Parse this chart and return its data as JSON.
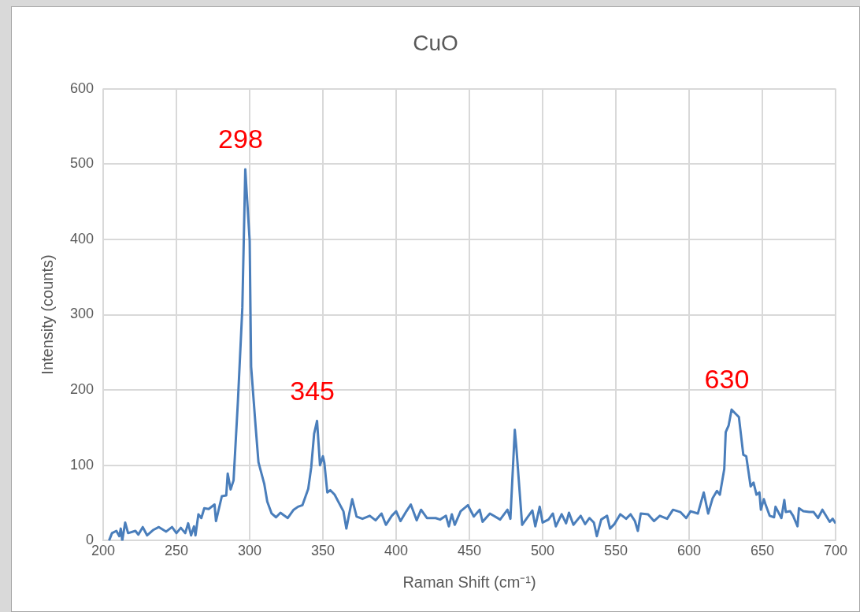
{
  "chart_data": {
    "type": "line",
    "title": "CuO",
    "xlabel": "Raman Shift (cm⁻¹)",
    "ylabel": "Intensity (counts)",
    "xlim": [
      200,
      700
    ],
    "xticks": [
      200,
      250,
      300,
      350,
      400,
      450,
      500,
      550,
      600,
      650,
      700
    ],
    "ylim": [
      0,
      600
    ],
    "yticks": [
      0,
      100,
      200,
      300,
      400,
      500,
      600
    ],
    "grid": true,
    "legend": false,
    "marker": "none",
    "line_style": "solid",
    "annotations": [
      {
        "text": "298",
        "x": 297,
        "y": 493
      },
      {
        "text": "345",
        "x": 346,
        "y": 159
      },
      {
        "text": "630",
        "x": 629,
        "y": 174
      }
    ],
    "series": [
      {
        "color": "#4a7ebb",
        "x": [
          204,
          206,
          209,
          211,
          212,
          213,
          215,
          217,
          222,
          224,
          227,
          230,
          234,
          238,
          243,
          247,
          250,
          253,
          256,
          258,
          260,
          262,
          263,
          265,
          267,
          269,
          272,
          276,
          277,
          281,
          284,
          285,
          287,
          289,
          292,
          295,
          297,
          300,
          301,
          304,
          306,
          310,
          312,
          315,
          318,
          321,
          326,
          330,
          333,
          336,
          340,
          342,
          344,
          346,
          348,
          350,
          351,
          353,
          355,
          358,
          361,
          364,
          366,
          368,
          370,
          373,
          377,
          382,
          386,
          390,
          393,
          397,
          400,
          403,
          407,
          410,
          414,
          417,
          421,
          427,
          430,
          434,
          436,
          438,
          440,
          444,
          449,
          453,
          457,
          459,
          464,
          471,
          476,
          478,
          481,
          482,
          486,
          490,
          493,
          495,
          498,
          500,
          504,
          507,
          509,
          513,
          516,
          518,
          521,
          526,
          529,
          532,
          535,
          537,
          540,
          544,
          546,
          549,
          553,
          557,
          560,
          563,
          565,
          567,
          572,
          576,
          580,
          585,
          589,
          594,
          598,
          601,
          606,
          610,
          613,
          616,
          619,
          621,
          624,
          625,
          627,
          629,
          632,
          634,
          637,
          639,
          642,
          644,
          646,
          648,
          649,
          651,
          652,
          655,
          658,
          659,
          663,
          665,
          666,
          669,
          671,
          674,
          675,
          678,
          682,
          685,
          688,
          691,
          696,
          698,
          700
        ],
        "values": [
          0,
          10,
          13,
          6,
          16,
          0,
          24,
          10,
          13,
          8,
          18,
          7,
          14,
          18,
          12,
          18,
          10,
          17,
          10,
          23,
          7,
          19,
          7,
          35,
          30,
          43,
          42,
          48,
          26,
          59,
          60,
          89,
          68,
          80,
          186,
          309,
          493,
          398,
          231,
          153,
          104,
          75,
          52,
          36,
          31,
          37,
          30,
          41,
          45,
          47,
          69,
          97,
          142,
          159,
          100,
          112,
          103,
          64,
          67,
          61,
          50,
          39,
          16,
          36,
          55,
          32,
          29,
          33,
          27,
          36,
          21,
          33,
          39,
          26,
          39,
          48,
          27,
          41,
          30,
          30,
          28,
          33,
          19,
          35,
          21,
          39,
          47,
          32,
          41,
          25,
          36,
          28,
          41,
          29,
          147,
          125,
          21,
          32,
          40,
          19,
          45,
          24,
          28,
          36,
          19,
          35,
          23,
          37,
          21,
          33,
          22,
          30,
          24,
          6,
          28,
          33,
          16,
          22,
          35,
          29,
          35,
          26,
          13,
          36,
          35,
          26,
          33,
          29,
          41,
          38,
          30,
          39,
          36,
          64,
          36,
          56,
          66,
          61,
          95,
          144,
          153,
          174,
          168,
          164,
          114,
          112,
          72,
          77,
          61,
          64,
          41,
          55,
          49,
          33,
          31,
          45,
          30,
          54,
          38,
          39,
          33,
          19,
          43,
          39,
          38,
          38,
          30,
          41,
          25,
          29,
          23
        ]
      }
    ]
  }
}
